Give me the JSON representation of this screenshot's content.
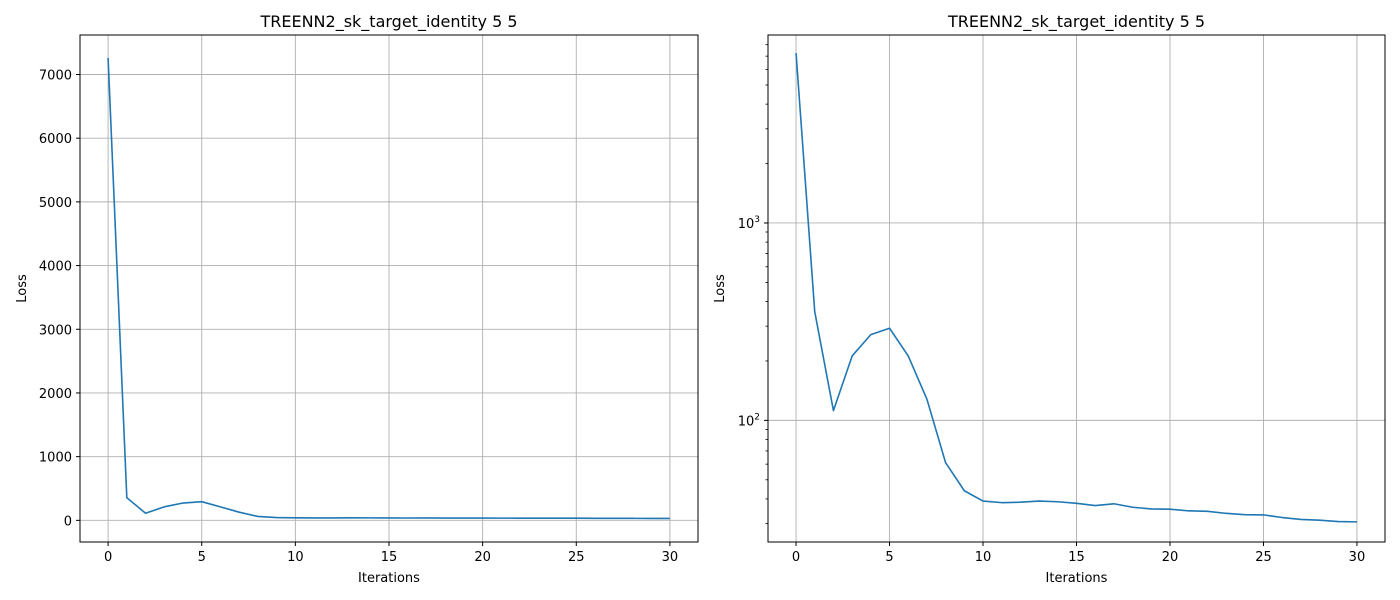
{
  "colors": {
    "line": "#1f77b4",
    "grid": "#b0b0b0",
    "axes": "#000000",
    "background": "#ffffff"
  },
  "chart_data": [
    {
      "type": "line",
      "title": "TREENN2_sk_target_identity 5 5",
      "xlabel": "Iterations",
      "ylabel": "Loss",
      "yscale": "linear",
      "grid": true,
      "xlim": [
        -1.5,
        31.5
      ],
      "ylim": [
        -340,
        7620
      ],
      "xticks": [
        0,
        5,
        10,
        15,
        20,
        25,
        30
      ],
      "xtick_labels": [
        "0",
        "5",
        "10",
        "15",
        "20",
        "25",
        "30"
      ],
      "yticks": [
        0,
        1000,
        2000,
        3000,
        4000,
        5000,
        6000,
        7000
      ],
      "ytick_labels": [
        "0",
        "1000",
        "2000",
        "3000",
        "4000",
        "5000",
        "6000",
        "7000"
      ],
      "x": [
        0,
        1,
        2,
        3,
        4,
        5,
        6,
        7,
        8,
        9,
        10,
        11,
        12,
        13,
        14,
        15,
        16,
        17,
        18,
        19,
        20,
        21,
        22,
        23,
        24,
        25,
        26,
        27,
        28,
        29,
        30
      ],
      "series": [
        {
          "values": [
            7260,
            355,
            112,
            212,
            272,
            293,
            212,
            128,
            61,
            44,
            39,
            38.3,
            38.5,
            39,
            38.7,
            38,
            37,
            37.8,
            36.3,
            35.6,
            35.5,
            34.8,
            34.6,
            33.8,
            33.3,
            33.2,
            32.2,
            31.5,
            31.2,
            30.7,
            30.6
          ]
        }
      ]
    },
    {
      "type": "line",
      "title": "TREENN2_sk_target_identity 5 5",
      "xlabel": "Iterations",
      "ylabel": "Loss",
      "yscale": "log",
      "grid": true,
      "xlim": [
        -1.5,
        31.5
      ],
      "ylim": [
        24.2,
        8960
      ],
      "xticks": [
        0,
        5,
        10,
        15,
        20,
        25,
        30
      ],
      "xtick_labels": [
        "0",
        "5",
        "10",
        "15",
        "20",
        "25",
        "30"
      ],
      "yticks": [
        100,
        1000
      ],
      "ytick_labels": [
        {
          "base": "10",
          "exp": "2"
        },
        {
          "base": "10",
          "exp": "3"
        }
      ],
      "x": [
        0,
        1,
        2,
        3,
        4,
        5,
        6,
        7,
        8,
        9,
        10,
        11,
        12,
        13,
        14,
        15,
        16,
        17,
        18,
        19,
        20,
        21,
        22,
        23,
        24,
        25,
        26,
        27,
        28,
        29,
        30
      ],
      "series": [
        {
          "values": [
            7260,
            355,
            112,
            212,
            272,
            293,
            212,
            128,
            61,
            44,
            39,
            38.3,
            38.5,
            39,
            38.7,
            38,
            37,
            37.8,
            36.3,
            35.6,
            35.5,
            34.8,
            34.6,
            33.8,
            33.3,
            33.2,
            32.2,
            31.5,
            31.2,
            30.7,
            30.6
          ]
        }
      ]
    }
  ]
}
